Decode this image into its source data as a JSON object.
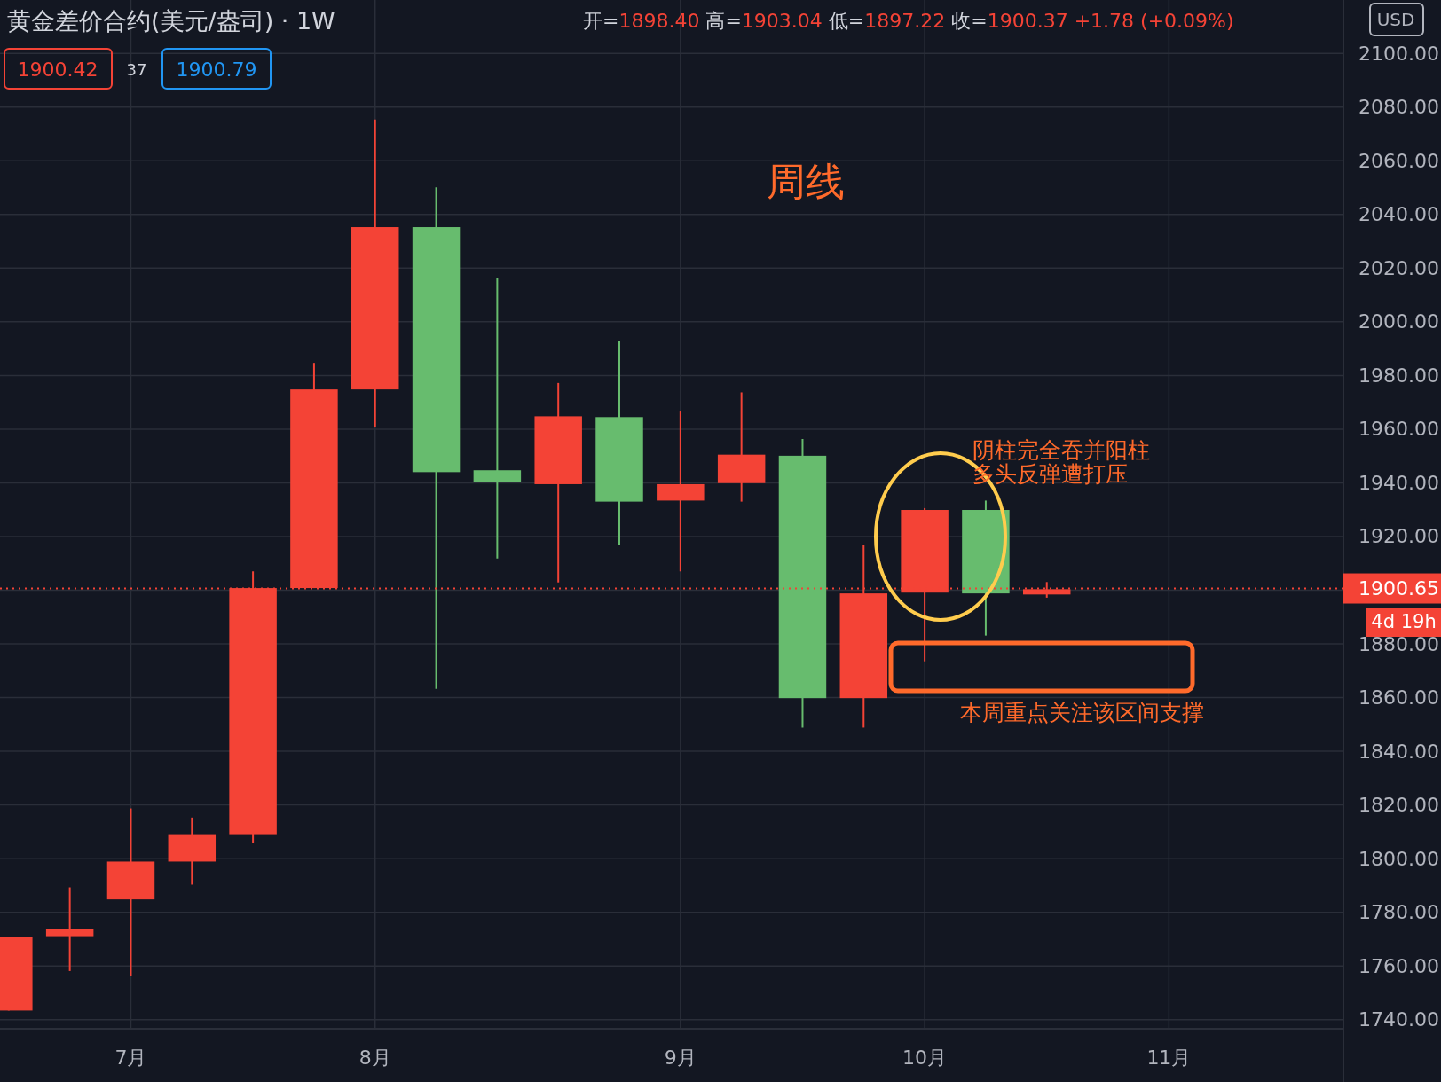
{
  "chart_data": {
    "type": "candlestick",
    "title": "黄金差价合约(美元/盎司) · 1W",
    "x": [
      "2020-06-22",
      "2020-06-29",
      "2020-07-06",
      "2020-07-13",
      "2020-07-20",
      "2020-07-27",
      "2020-08-03",
      "2020-08-10",
      "2020-08-17",
      "2020-08-24",
      "2020-08-31",
      "2020-09-07",
      "2020-09-14",
      "2020-09-21",
      "2020-09-28",
      "2020-10-05",
      "2020-10-12",
      "2020-10-19"
    ],
    "ohlc": [
      [
        1743.4,
        1770.8,
        1743.4,
        1770.8
      ],
      [
        1771.1,
        1789.3,
        1758.1,
        1773.9
      ],
      [
        1784.8,
        1818.7,
        1756.1,
        1798.9
      ],
      [
        1798.9,
        1815.3,
        1790.3,
        1809.1
      ],
      [
        1809.1,
        1907.0,
        1806.0,
        1900.8
      ],
      [
        1900.8,
        1984.7,
        1900.8,
        1974.8
      ],
      [
        1974.8,
        2075.4,
        1960.7,
        2035.3
      ],
      [
        2035.3,
        2050.1,
        1863.2,
        1944.0
      ],
      [
        1944.7,
        2016.2,
        1911.8,
        1940.2
      ],
      [
        1939.5,
        1977.2,
        1902.9,
        1964.8
      ],
      [
        1964.5,
        1992.9,
        1916.9,
        1933.0
      ],
      [
        1933.4,
        1966.9,
        1907.0,
        1939.5
      ],
      [
        1939.9,
        1973.7,
        1933.0,
        1950.5
      ],
      [
        1950.1,
        1956.3,
        1848.8,
        1859.8
      ],
      [
        1859.8,
        1916.9,
        1848.8,
        1898.8
      ],
      [
        1899.1,
        1930.6,
        1873.5,
        1929.9
      ],
      [
        1929.9,
        1933.4,
        1883.1,
        1898.8
      ],
      [
        1898.4,
        1903.04,
        1897.22,
        1900.37
      ]
    ],
    "colors": [
      "#f44336",
      "#f44336",
      "#f44336",
      "#f44336",
      "#f44336",
      "#f44336",
      "#f44336",
      "#67bc6e",
      "#67bc6e",
      "#f44336",
      "#67bc6e",
      "#f44336",
      "#f44336",
      "#67bc6e",
      "#f44336",
      "#f44336",
      "#67bc6e",
      "#f44336"
    ],
    "xlim": [
      "2020-06-21",
      "2020-11-22"
    ],
    "xticks": [
      {
        "value": "2020-07-06",
        "label": "7月"
      },
      {
        "value": "2020-08-03",
        "label": "8月"
      },
      {
        "value": "2020-09-07",
        "label": "9月"
      },
      {
        "value": "2020-10-05",
        "label": "10月"
      },
      {
        "value": "2020-11-02",
        "label": "11月"
      }
    ],
    "ylim": [
      1736.6,
      2119.9
    ],
    "yticks": [
      {
        "value": 1740,
        "label": "1740.00"
      },
      {
        "value": 1760,
        "label": "1760.00"
      },
      {
        "value": 1780,
        "label": "1780.00"
      },
      {
        "value": 1800,
        "label": "1800.00"
      },
      {
        "value": 1820,
        "label": "1820.00"
      },
      {
        "value": 1840,
        "label": "1840.00"
      },
      {
        "value": 1860,
        "label": "1860.00"
      },
      {
        "value": 1880,
        "label": "1880.00"
      },
      {
        "value": 1900,
        "label": null
      },
      {
        "value": 1920,
        "label": "1920.00"
      },
      {
        "value": 1940,
        "label": "1940.00"
      },
      {
        "value": 1960,
        "label": "1960.00"
      },
      {
        "value": 1980,
        "label": "1980.00"
      },
      {
        "value": 2000,
        "label": "2000.00"
      },
      {
        "value": 2020,
        "label": "2020.00"
      },
      {
        "value": 2040,
        "label": "2040.00"
      },
      {
        "value": 2060,
        "label": "2060.00"
      },
      {
        "value": 2080,
        "label": "2080.00"
      },
      {
        "value": 2100,
        "label": "2100.00"
      }
    ],
    "grid": true,
    "ref_lines": [
      {
        "axis": "y",
        "value": 1900.65,
        "label": "1900.65",
        "color": "#f44336",
        "line_style": "dotted"
      }
    ],
    "annotations": [
      "开=1898.40 高=1903.04 低=1897.22 收=1900.37 +1.78 (+0.09%)",
      "1900.42",
      "37",
      "1900.79",
      "USD",
      "周线",
      "阴柱完全吞并阳柱",
      "多头反弹遭打压",
      "本周重点关注该区间支撑",
      "4d 19h"
    ]
  }
}
